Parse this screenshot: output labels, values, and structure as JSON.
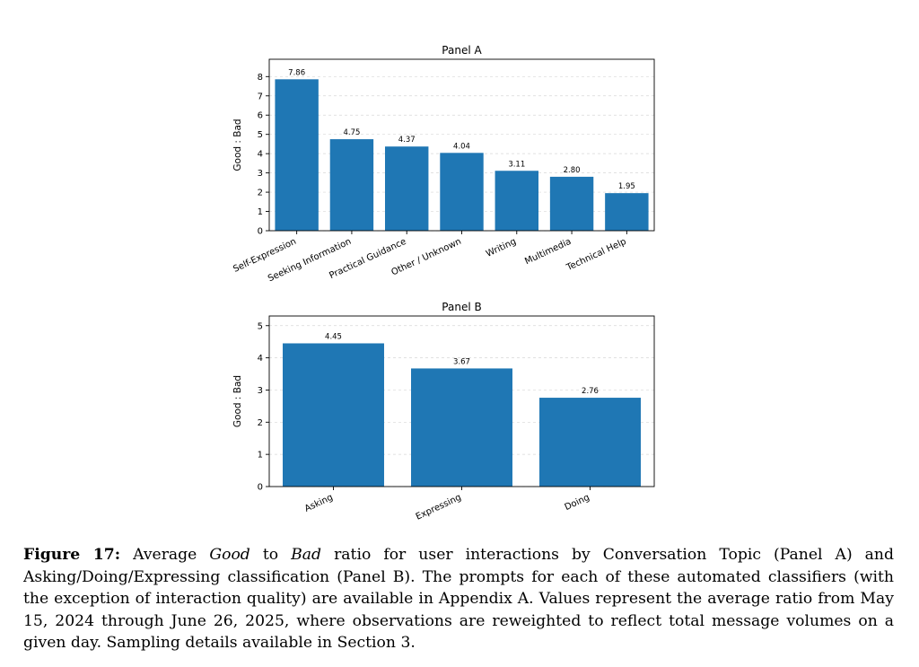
{
  "chart_data": [
    {
      "type": "bar",
      "title": "Panel A",
      "xlabel": "",
      "ylabel": "Good : Bad",
      "categories": [
        "Self-Expression",
        "Seeking Information",
        "Practical Guidance",
        "Other / Unknown",
        "Writing",
        "Multimedia",
        "Technical Help"
      ],
      "values": [
        7.86,
        4.75,
        4.37,
        4.04,
        3.11,
        2.8,
        1.95
      ],
      "value_labels": [
        "7.86",
        "4.75",
        "4.37",
        "4.04",
        "3.11",
        "2.80",
        "1.95"
      ],
      "ylim": [
        0,
        8.9
      ],
      "yticks": [
        0,
        1,
        2,
        3,
        4,
        5,
        6,
        7,
        8
      ],
      "grid": "y-dashed",
      "bar_color": "#1f77b4",
      "tick_rotation": 25
    },
    {
      "type": "bar",
      "title": "Panel B",
      "xlabel": "",
      "ylabel": "Good : Bad",
      "categories": [
        "Asking",
        "Expressing",
        "Doing"
      ],
      "values": [
        4.45,
        3.67,
        2.76
      ],
      "value_labels": [
        "4.45",
        "3.67",
        "2.76"
      ],
      "ylim": [
        0,
        5.3
      ],
      "yticks": [
        0,
        1,
        2,
        3,
        4,
        5
      ],
      "grid": "y-dashed",
      "bar_color": "#1f77b4",
      "tick_rotation": 25
    }
  ],
  "caption": {
    "label": "Figure 17:",
    "p1": " Average ",
    "good": "Good",
    "p2": " to ",
    "bad": "Bad",
    "p3": " ratio for user interactions by Conversation Topic (Panel A) and Asking/Doing/Expressing classification (Panel B). The prompts for each of these automated classifiers (with the exception of interaction quality) are available in Appendix A. Values represent the average ratio from May 15, 2024 through June 26, 2025, where observations are reweighted to reflect total message volumes on a given day. Sampling details available in Section 3."
  }
}
